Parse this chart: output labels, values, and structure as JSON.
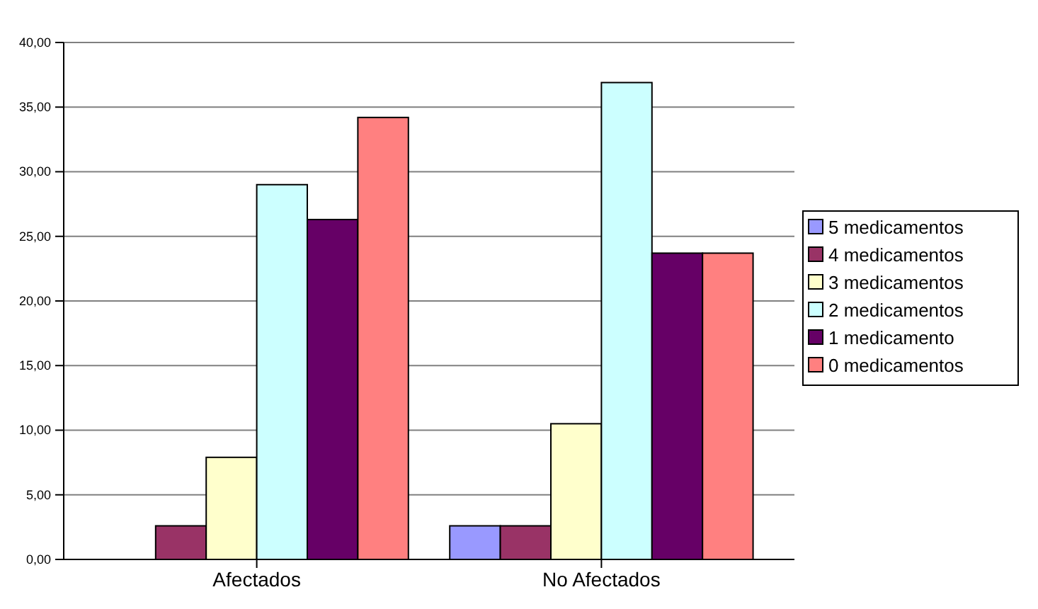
{
  "chart_data": {
    "type": "bar",
    "categories": [
      "Afectados",
      "No Afectados"
    ],
    "series": [
      {
        "name": "5 medicamentos",
        "color": "#9999ff",
        "values": [
          0,
          2.6
        ]
      },
      {
        "name": "4 medicamentos",
        "color": "#993366",
        "values": [
          2.6,
          2.6
        ]
      },
      {
        "name": "3 medicamentos",
        "color": "#ffffcc",
        "values": [
          7.9,
          10.5
        ]
      },
      {
        "name": "2 medicamentos",
        "color": "#ccffff",
        "values": [
          29.0,
          36.9
        ]
      },
      {
        "name": "1 medicamento",
        "color": "#660066",
        "values": [
          26.3,
          23.7
        ]
      },
      {
        "name": "0 medicamentos",
        "color": "#ff8080",
        "values": [
          34.2,
          23.7
        ]
      }
    ],
    "ylim": [
      0,
      40
    ],
    "yticks": [
      {
        "value": 0,
        "label": "0,00"
      },
      {
        "value": 5,
        "label": "5,00"
      },
      {
        "value": 10,
        "label": "10,00"
      },
      {
        "value": 15,
        "label": "15,00"
      },
      {
        "value": 20,
        "label": "20,00"
      },
      {
        "value": 25,
        "label": "25,00"
      },
      {
        "value": 30,
        "label": "30,00"
      },
      {
        "value": 35,
        "label": "35,00"
      },
      {
        "value": 40,
        "label": "40,00"
      }
    ],
    "grid": "y",
    "legend": "right"
  }
}
